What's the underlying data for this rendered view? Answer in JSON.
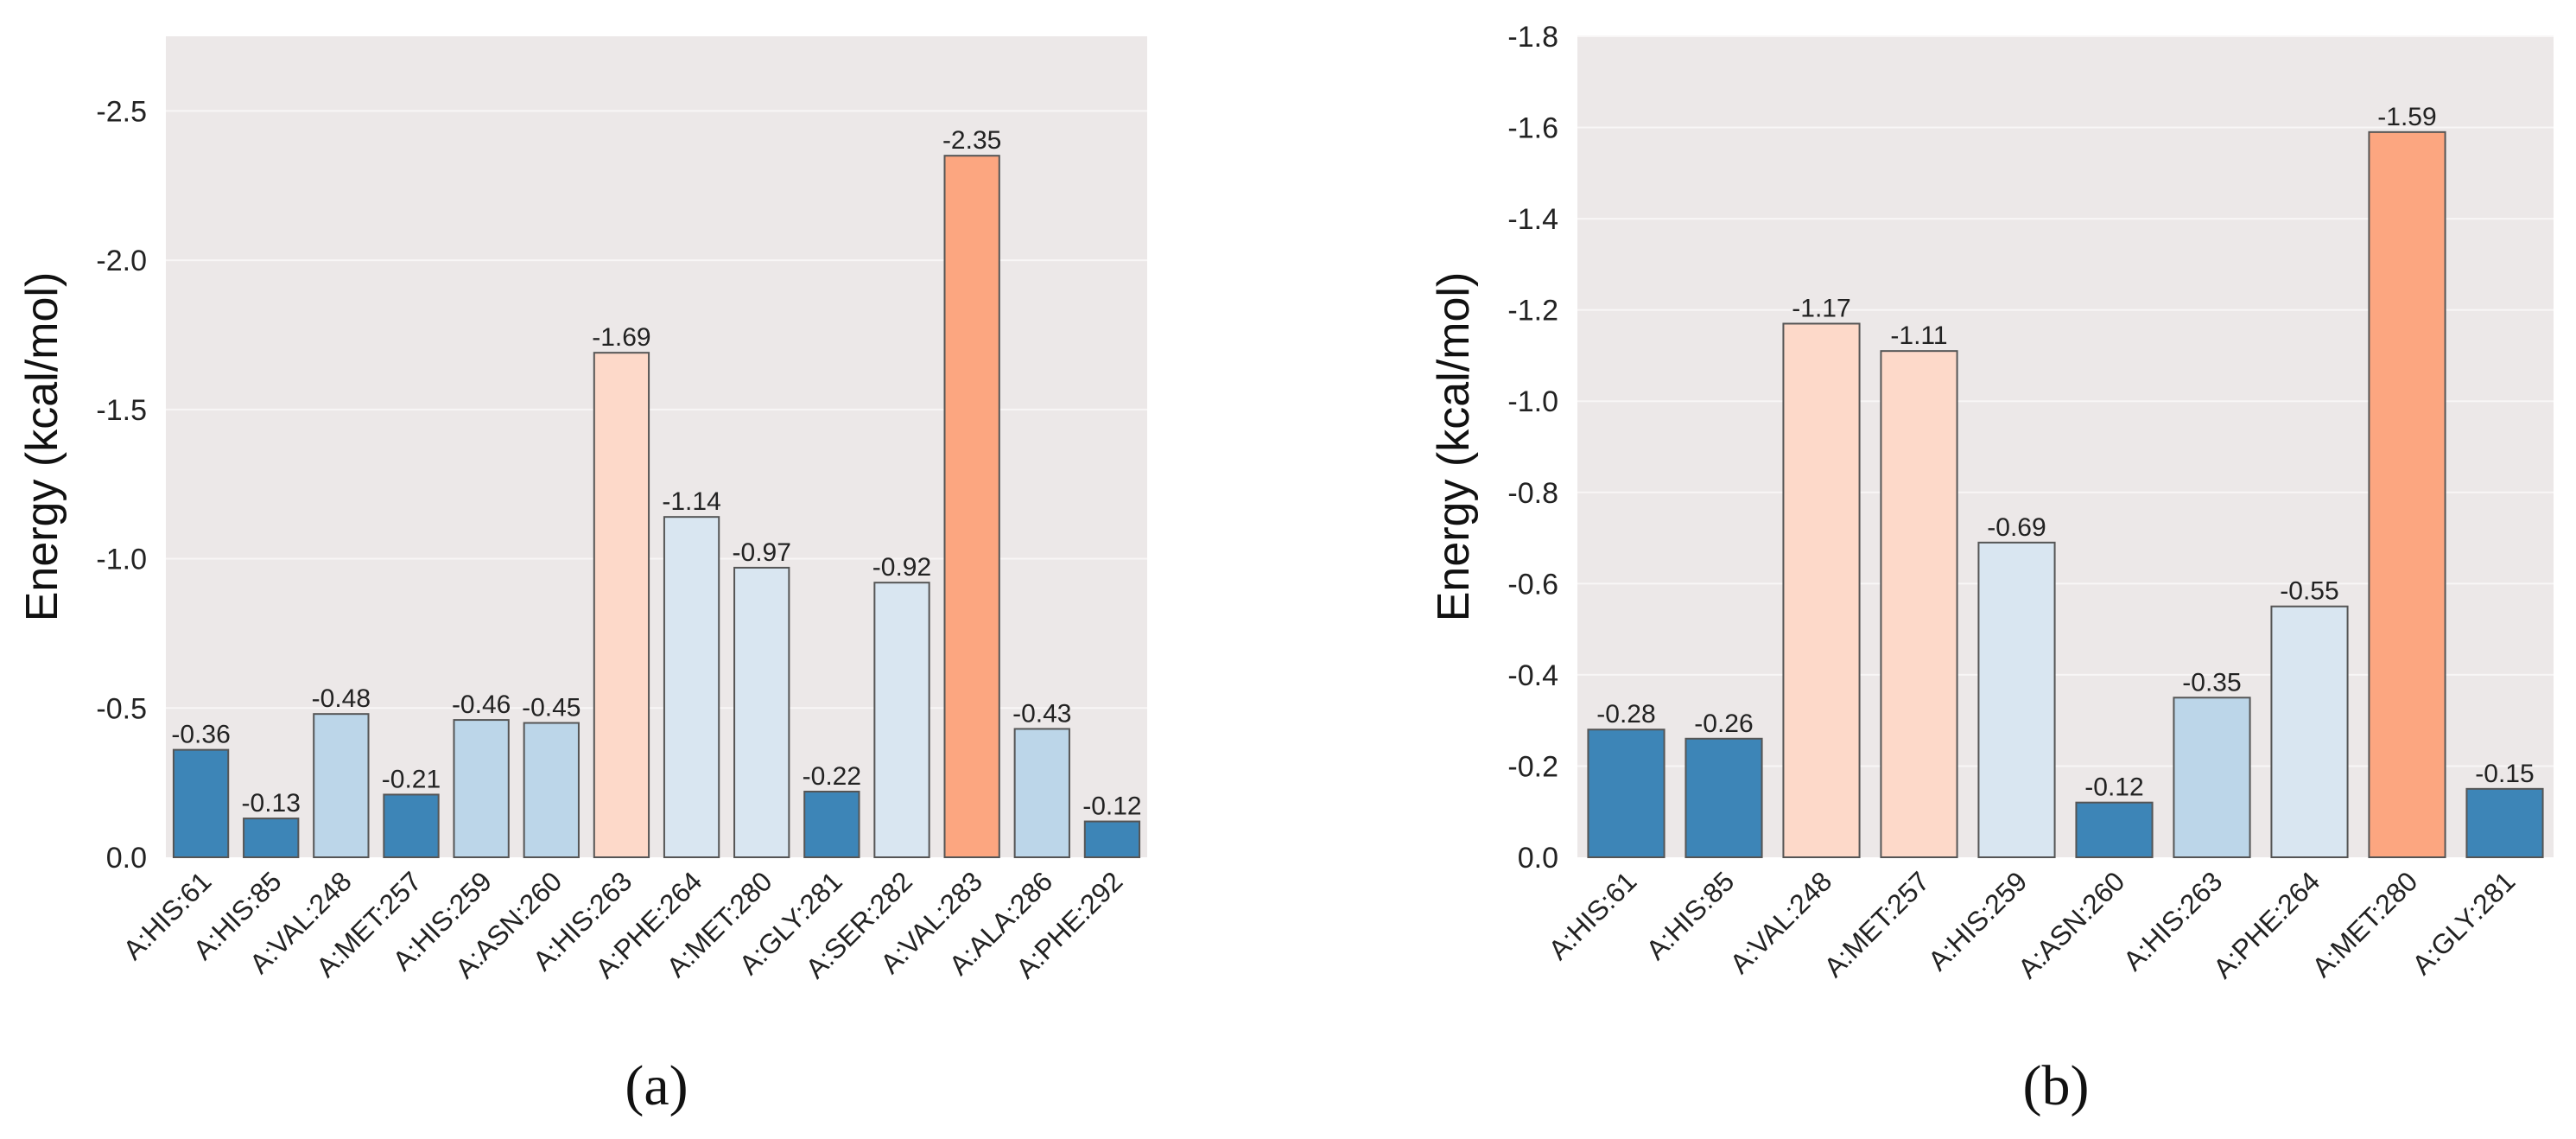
{
  "figure": {
    "caption_a": "(a)",
    "caption_b": "(b)"
  },
  "colors": {
    "plot_bg": "#ece8e8",
    "grid": "#f8f6f6",
    "dark_blue": "#3d85b7",
    "mid_blue": "#bcd6e9",
    "light_blue": "#d9e6f1",
    "light_salmon": "#fdd9c9",
    "salmon": "#fca680",
    "bar_edge": "#555555",
    "text": "#222222"
  },
  "chart_data": [
    {
      "id": "a",
      "type": "bar",
      "title": "",
      "xlabel": "",
      "ylabel": "Energy (kcal/mol)",
      "ylim": [
        0,
        -2.75
      ],
      "yticks": [
        0,
        -0.5,
        -1.0,
        -1.5,
        -2.0,
        -2.5
      ],
      "ytick_labels": [
        "0.0",
        "-0.5",
        "-1.0",
        "-1.5",
        "-2.0",
        "-2.5"
      ],
      "grid": true,
      "categories": [
        "A:HIS:61",
        "A:HIS:85",
        "A:VAL:248",
        "A:MET:257",
        "A:HIS:259",
        "A:ASN:260",
        "A:HIS:263",
        "A:PHE:264",
        "A:MET:280",
        "A:GLY:281",
        "A:SER:282",
        "A:VAL:283",
        "A:ALA:286",
        "A:PHE:292"
      ],
      "values": [
        -0.36,
        -0.13,
        -0.48,
        -0.21,
        -0.46,
        -0.45,
        -1.69,
        -1.14,
        -0.97,
        -0.22,
        -0.92,
        -2.35,
        -0.43,
        -0.12
      ],
      "value_labels": [
        "-0.36",
        "-0.13",
        "-0.48",
        "-0.21",
        "-0.46",
        "-0.45",
        "-1.69",
        "-1.14",
        "-0.97",
        "-0.22",
        "-0.92",
        "-2.35",
        "-0.43",
        "-0.12"
      ],
      "bar_colors": [
        "dark_blue",
        "dark_blue",
        "mid_blue",
        "dark_blue",
        "mid_blue",
        "mid_blue",
        "light_salmon",
        "light_blue",
        "light_blue",
        "dark_blue",
        "light_blue",
        "salmon",
        "mid_blue",
        "dark_blue"
      ]
    },
    {
      "id": "b",
      "type": "bar",
      "title": "",
      "xlabel": "",
      "ylabel": "Energy (kcal/mol)",
      "ylim": [
        0,
        -1.8
      ],
      "yticks": [
        0,
        -0.2,
        -0.4,
        -0.6,
        -0.8,
        -1.0,
        -1.2,
        -1.4,
        -1.6,
        -1.8
      ],
      "ytick_labels": [
        "0.0",
        "-0.2",
        "-0.4",
        "-0.6",
        "-0.8",
        "-1.0",
        "-1.2",
        "-1.4",
        "-1.6",
        "-1.8"
      ],
      "grid": true,
      "categories": [
        "A:HIS:61",
        "A:HIS:85",
        "A:VAL:248",
        "A:MET:257",
        "A:HIS:259",
        "A:ASN:260",
        "A:HIS:263",
        "A:PHE:264",
        "A:MET:280",
        "A:GLY:281"
      ],
      "values": [
        -0.28,
        -0.26,
        -1.17,
        -1.11,
        -0.69,
        -0.12,
        -0.35,
        -0.55,
        -1.59,
        -0.15
      ],
      "value_labels": [
        "-0.28",
        "-0.26",
        "-1.17",
        "-1.11",
        "-0.69",
        "-0.12",
        "-0.35",
        "-0.55",
        "-1.59",
        "-0.15"
      ],
      "bar_colors": [
        "dark_blue",
        "dark_blue",
        "light_salmon",
        "light_salmon",
        "light_blue",
        "dark_blue",
        "mid_blue",
        "light_blue",
        "salmon",
        "dark_blue"
      ]
    }
  ]
}
